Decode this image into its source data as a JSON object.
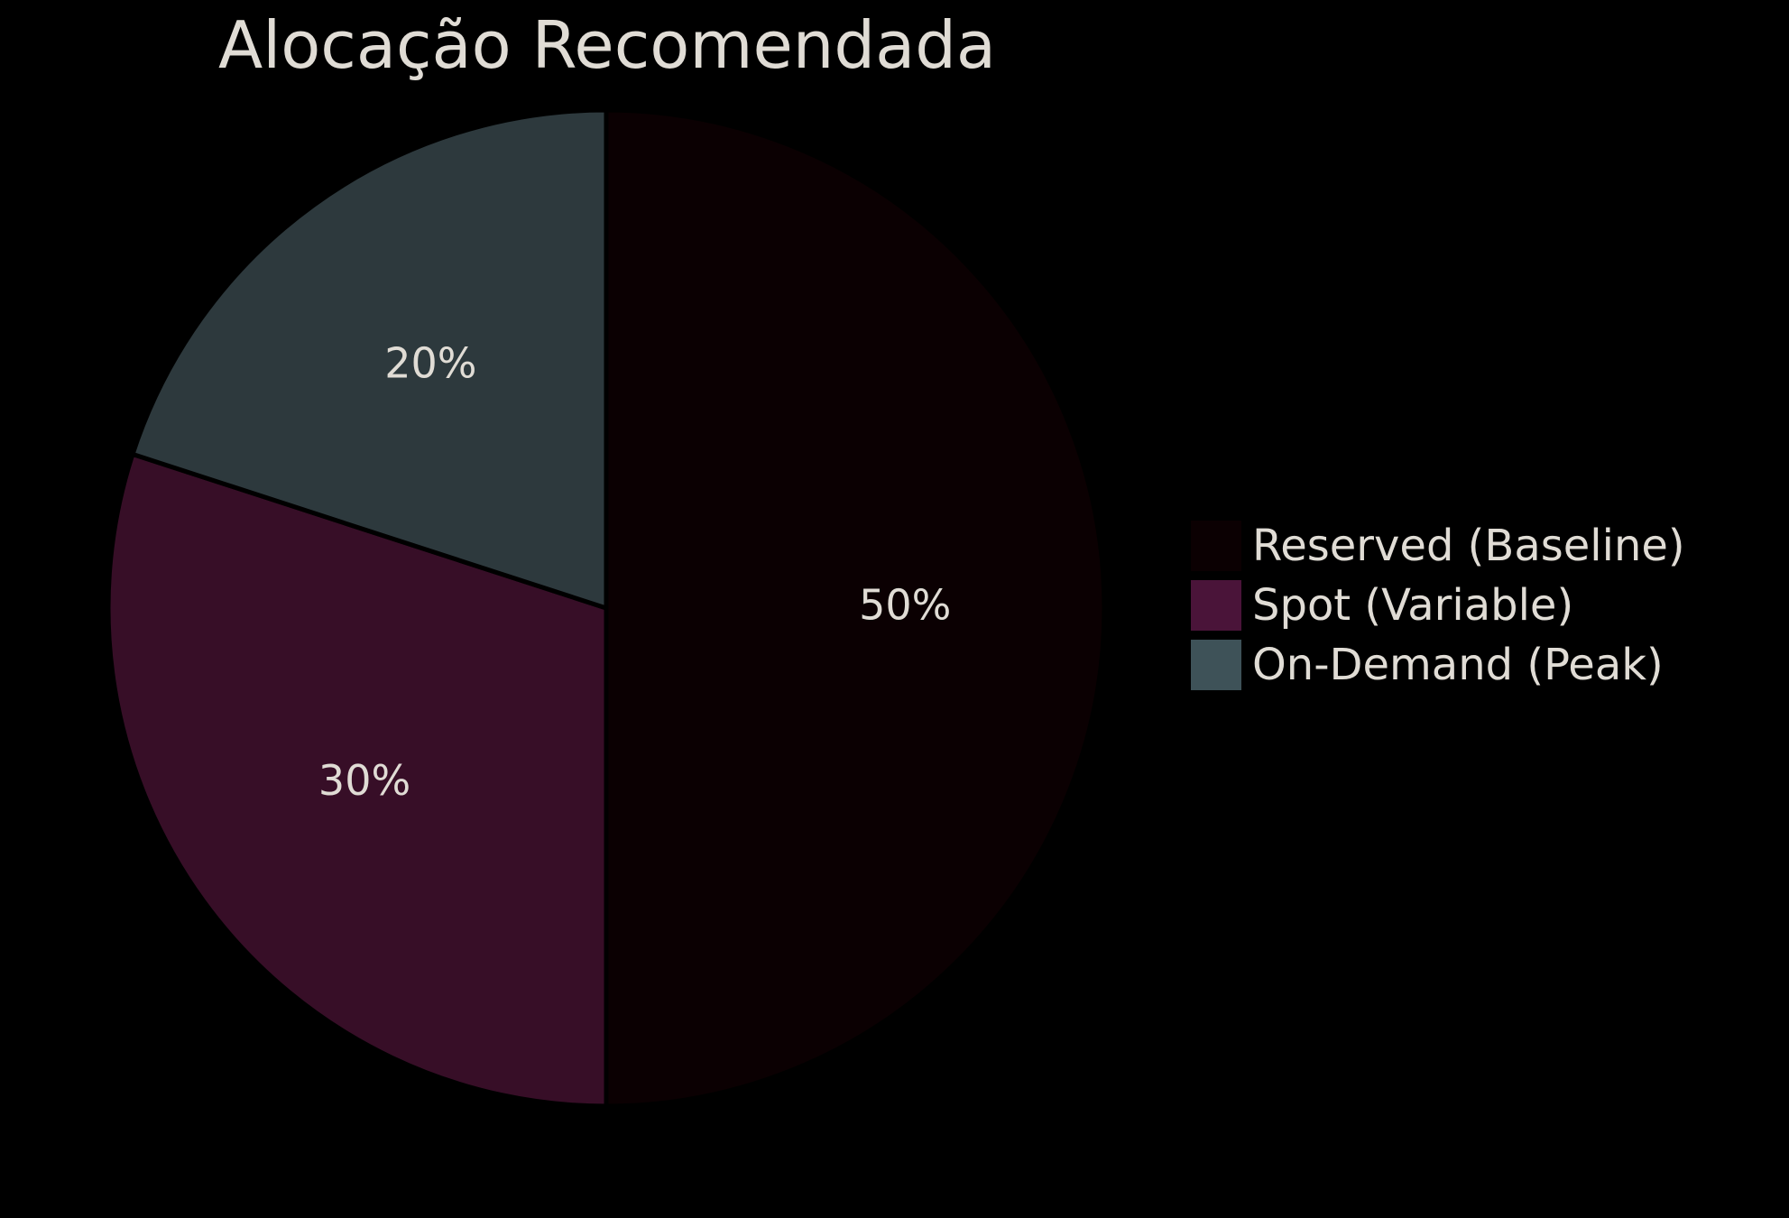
{
  "chart_data": {
    "type": "pie",
    "title": "Alocação Recomendada",
    "slices": [
      {
        "label": "Reserved (Baseline)",
        "value": 50,
        "display": "50%",
        "color": "#0b0002"
      },
      {
        "label": "Spot (Variable)",
        "value": 30,
        "display": "30%",
        "color": "#370e27"
      },
      {
        "label": "On-Demand (Peak)",
        "value": 20,
        "display": "20%",
        "color": "#2d393d"
      }
    ],
    "legend_colors": [
      "#0b0002",
      "#4a1439",
      "#3e5258"
    ],
    "start_angle_deg": 90,
    "direction": "clockwise",
    "legend_position": "right"
  }
}
